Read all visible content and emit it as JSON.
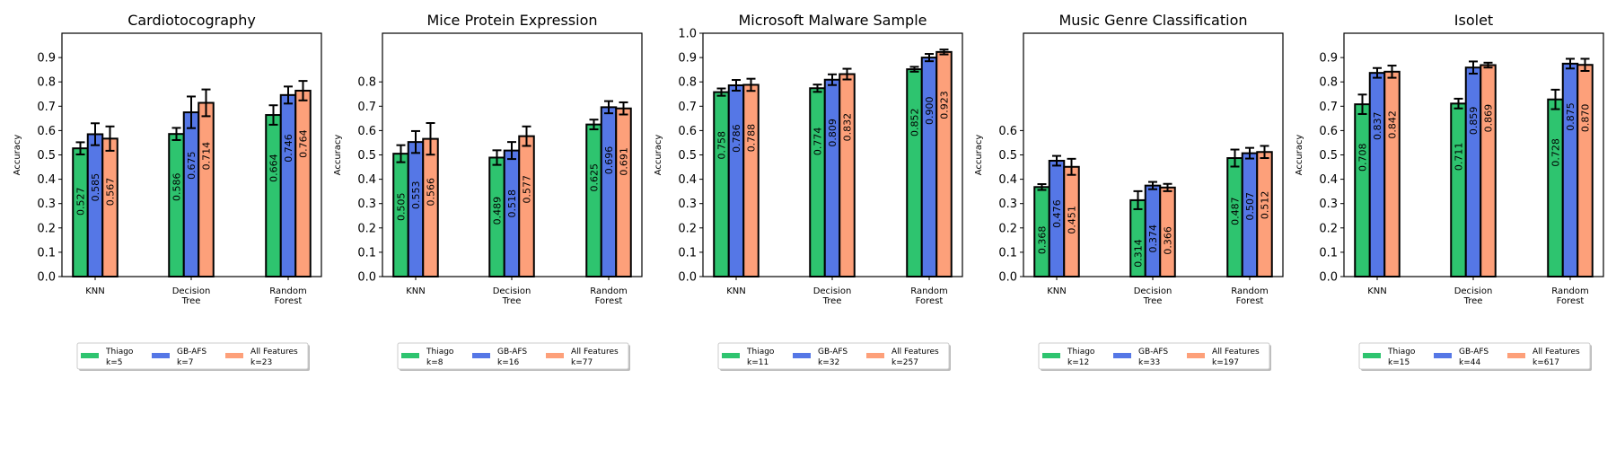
{
  "chart_data": [
    {
      "type": "bar",
      "title": "Cardiotocography",
      "ylabel": "Accuracy",
      "ylim": [
        0,
        1.0
      ],
      "yticks": [
        "0.0",
        "0.1",
        "0.2",
        "0.3",
        "0.4",
        "0.5",
        "0.6",
        "0.7",
        "0.8",
        "0.9"
      ],
      "categories": [
        [
          "KNN"
        ],
        [
          "Decision",
          "Tree"
        ],
        [
          "Random",
          "Forest"
        ]
      ],
      "series": [
        {
          "name": "Thiago",
          "k": "k=5",
          "values": [
            0.527,
            0.586,
            0.664
          ],
          "errors": [
            0.025,
            0.025,
            0.04
          ],
          "labels": [
            "0.527",
            "0.586",
            "0.664"
          ]
        },
        {
          "name": "GB-AFS",
          "k": "k=7",
          "values": [
            0.585,
            0.675,
            0.746
          ],
          "errors": [
            0.045,
            0.065,
            0.035
          ],
          "labels": [
            "0.585",
            "0.675",
            "0.746"
          ]
        },
        {
          "name": "All Features",
          "k": "k=23",
          "values": [
            0.567,
            0.714,
            0.764
          ],
          "errors": [
            0.05,
            0.055,
            0.04
          ],
          "labels": [
            "0.567",
            "0.714",
            "0.764"
          ]
        }
      ],
      "legend": "bottom"
    },
    {
      "type": "bar",
      "title": "Mice Protein Expression",
      "ylabel": "Accuracy",
      "ylim": [
        0,
        1.0
      ],
      "yticks": [
        "0.0",
        "0.1",
        "0.2",
        "0.3",
        "0.4",
        "0.5",
        "0.6",
        "0.7",
        "0.8"
      ],
      "categories": [
        [
          "KNN"
        ],
        [
          "Decision",
          "Tree"
        ],
        [
          "Random",
          "Forest"
        ]
      ],
      "series": [
        {
          "name": "Thiago",
          "k": "k=8",
          "values": [
            0.505,
            0.489,
            0.625
          ],
          "errors": [
            0.035,
            0.03,
            0.02
          ],
          "labels": [
            "0.505",
            "0.489",
            "0.625"
          ]
        },
        {
          "name": "GB-AFS",
          "k": "k=16",
          "values": [
            0.553,
            0.518,
            0.696
          ],
          "errors": [
            0.045,
            0.035,
            0.025
          ],
          "labels": [
            "0.553",
            "0.518",
            "0.696"
          ]
        },
        {
          "name": "All Features",
          "k": "k=77",
          "values": [
            0.566,
            0.577,
            0.691
          ],
          "errors": [
            0.065,
            0.04,
            0.025
          ],
          "labels": [
            "0.566",
            "0.577",
            "0.691"
          ]
        }
      ],
      "legend": "bottom"
    },
    {
      "type": "bar",
      "title": "Microsoft Malware Sample",
      "ylabel": "Accuracy",
      "ylim": [
        0,
        1.0
      ],
      "yticks": [
        "0.0",
        "0.1",
        "0.2",
        "0.3",
        "0.4",
        "0.5",
        "0.6",
        "0.7",
        "0.8",
        "0.9",
        "1.0"
      ],
      "categories": [
        [
          "KNN"
        ],
        [
          "Decision",
          "Tree"
        ],
        [
          "Random",
          "Forest"
        ]
      ],
      "series": [
        {
          "name": "Thiago",
          "k": "k=11",
          "values": [
            0.758,
            0.774,
            0.852
          ],
          "errors": [
            0.015,
            0.015,
            0.01
          ],
          "labels": [
            "0.758",
            "0.774",
            "0.852"
          ]
        },
        {
          "name": "GB-AFS",
          "k": "k=32",
          "values": [
            0.786,
            0.809,
            0.9
          ],
          "errors": [
            0.022,
            0.022,
            0.015
          ],
          "labels": [
            "0.786",
            "0.809",
            "0.900"
          ]
        },
        {
          "name": "All Features",
          "k": "k=257",
          "values": [
            0.788,
            0.832,
            0.923
          ],
          "errors": [
            0.025,
            0.022,
            0.01
          ],
          "labels": [
            "0.788",
            "0.832",
            "0.923"
          ]
        }
      ],
      "legend": "bottom"
    },
    {
      "type": "bar",
      "title": "Music Genre Classification",
      "ylabel": "Accuracy",
      "ylim": [
        0,
        1.0
      ],
      "yticks": [
        "0.0",
        "0.1",
        "0.2",
        "0.3",
        "0.4",
        "0.5",
        "0.6"
      ],
      "categories": [
        [
          "KNN"
        ],
        [
          "Decision",
          "Tree"
        ],
        [
          "Random",
          "Forest"
        ]
      ],
      "series": [
        {
          "name": "Thiago",
          "k": "k=12",
          "values": [
            0.368,
            0.314,
            0.487
          ],
          "errors": [
            0.012,
            0.037,
            0.035
          ],
          "labels": [
            "0.368",
            "0.314",
            "0.487"
          ]
        },
        {
          "name": "GB-AFS",
          "k": "k=33",
          "values": [
            0.476,
            0.374,
            0.507
          ],
          "errors": [
            0.02,
            0.015,
            0.022
          ],
          "labels": [
            "0.476",
            "0.374",
            "0.507"
          ]
        },
        {
          "name": "All Features",
          "k": "k=197",
          "values": [
            0.451,
            0.366,
            0.512
          ],
          "errors": [
            0.033,
            0.015,
            0.025
          ],
          "labels": [
            "0.451",
            "0.366",
            "0.512"
          ]
        }
      ],
      "legend": "bottom"
    },
    {
      "type": "bar",
      "title": "Isolet",
      "ylabel": "Accuracy",
      "ylim": [
        0,
        1.0
      ],
      "yticks": [
        "0.0",
        "0.1",
        "0.2",
        "0.3",
        "0.4",
        "0.5",
        "0.6",
        "0.7",
        "0.8",
        "0.9"
      ],
      "categories": [
        [
          "KNN"
        ],
        [
          "Decision",
          "Tree"
        ],
        [
          "Random",
          "Forest"
        ]
      ],
      "series": [
        {
          "name": "Thiago",
          "k": "k=15",
          "values": [
            0.708,
            0.711,
            0.728
          ],
          "errors": [
            0.04,
            0.02,
            0.04
          ],
          "labels": [
            "0.708",
            "0.711",
            "0.728"
          ]
        },
        {
          "name": "GB-AFS",
          "k": "k=44",
          "values": [
            0.837,
            0.859,
            0.875
          ],
          "errors": [
            0.02,
            0.025,
            0.02
          ],
          "labels": [
            "0.837",
            "0.859",
            "0.875"
          ]
        },
        {
          "name": "All Features",
          "k": "k=617",
          "values": [
            0.842,
            0.869,
            0.87
          ],
          "errors": [
            0.025,
            0.01,
            0.025
          ],
          "labels": [
            "0.842",
            "0.869",
            "0.870"
          ]
        }
      ],
      "legend": "bottom"
    }
  ],
  "colors": {
    "Thiago": "#2ec46f",
    "GB-AFS": "#5577e6",
    "All Features": "#fda07a"
  },
  "grid": false
}
